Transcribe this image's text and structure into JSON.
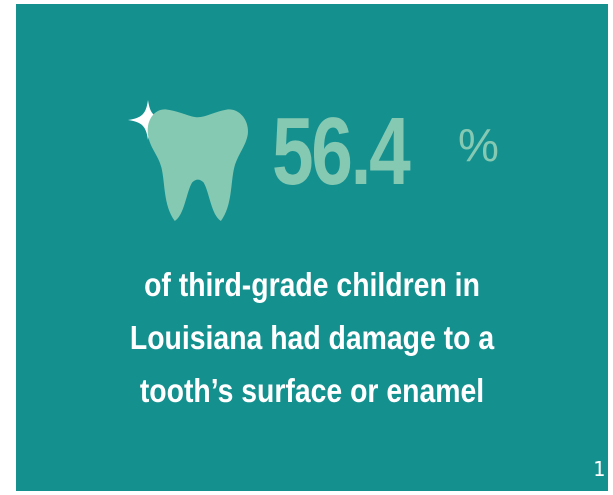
{
  "stat": {
    "value": "56.4",
    "unit": "%"
  },
  "description": {
    "lines": [
      "of third-grade children in",
      "Louisiana had damage to a",
      "tooth’s surface or enamel"
    ]
  },
  "footnote": "1",
  "colors": {
    "background": "#14908f",
    "accent": "#86c9b3",
    "text": "#ffffff"
  },
  "icons": [
    "sparkle-icon",
    "tooth-icon"
  ]
}
